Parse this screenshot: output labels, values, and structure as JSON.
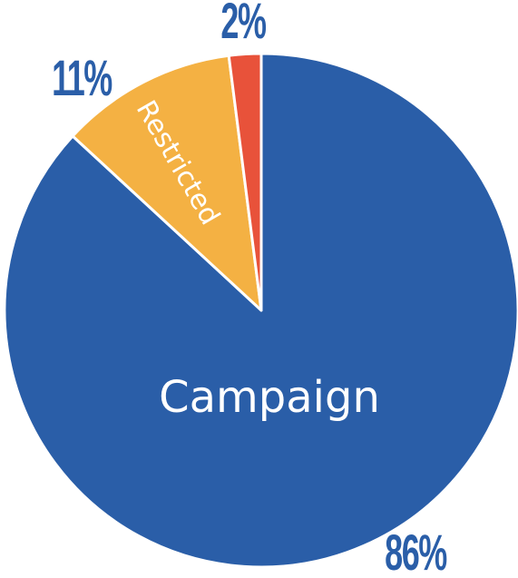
{
  "chart_data": {
    "type": "pie",
    "slices": [
      {
        "label": "Campaign",
        "value": 86,
        "value_label": "86%",
        "color": "#2a5ea8"
      },
      {
        "label": "Restricted",
        "value": 11,
        "value_label": "11%",
        "color": "#f4b143"
      },
      {
        "label": "",
        "value": 2,
        "value_label": "2%",
        "color": "#e8523a"
      }
    ],
    "start_angle_deg": 0,
    "direction": "clockwise",
    "title": ""
  }
}
